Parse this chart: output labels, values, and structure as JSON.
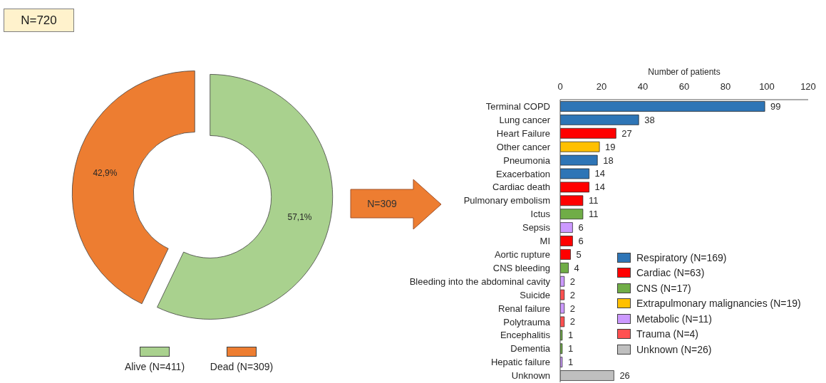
{
  "chart_data": [
    {
      "type": "donut",
      "categories": [
        "Alive (N=411)",
        "Dead (N=309)"
      ],
      "values": [
        57.1,
        42.9
      ],
      "colors": [
        "#a9d18e",
        "#ed7d31"
      ],
      "value_labels": [
        "57,1%",
        "42,9%"
      ],
      "legend": "bottom",
      "annotations": [
        "N=720"
      ]
    },
    {
      "type": "bar",
      "orientation": "horizontal",
      "stacked": true,
      "xlabel": "Number of patients",
      "categories": [
        "Terminal COPD",
        "Lung cancer",
        "Heart Failure",
        "Other cancer",
        "Pneumonia",
        "Exacerbation",
        "Cardiac death",
        "Pulmonary embolism",
        "Ictus",
        "Sepsis",
        "MI",
        "Aortic rupture",
        "CNS bleeding",
        "Bleeding into the abdominal cavity",
        "Suicide",
        "Renal failure",
        "Polytrauma",
        "Encephalitis",
        "Dementia",
        "Hepatic failure",
        "Unknown"
      ],
      "series": [
        {
          "name": "Respiratory (N=169)",
          "color": "#2e75b6",
          "values": [
            99,
            38,
            null,
            null,
            18,
            14,
            null,
            null,
            null,
            null,
            null,
            null,
            null,
            null,
            null,
            null,
            null,
            null,
            null,
            null,
            null
          ]
        },
        {
          "name": "Cardiac (N=63)",
          "color": "#ff0000",
          "values": [
            null,
            null,
            27,
            null,
            null,
            null,
            14,
            11,
            null,
            null,
            6,
            5,
            null,
            null,
            null,
            null,
            null,
            null,
            null,
            null,
            null
          ]
        },
        {
          "name": "CNS (N=17)",
          "color": "#70ad47",
          "values": [
            null,
            null,
            null,
            null,
            null,
            null,
            null,
            null,
            11,
            null,
            null,
            null,
            4,
            null,
            null,
            null,
            null,
            1,
            1,
            null,
            null
          ]
        },
        {
          "name": "Extrapulmonary malignancies (N=19)",
          "color": "#ffc000",
          "values": [
            null,
            null,
            null,
            19,
            null,
            null,
            null,
            null,
            null,
            null,
            null,
            null,
            null,
            null,
            null,
            null,
            null,
            null,
            null,
            null,
            null
          ]
        },
        {
          "name": "Metabolic (N=11)",
          "color": "#cc99ff",
          "values": [
            null,
            null,
            null,
            null,
            null,
            null,
            null,
            null,
            null,
            6,
            null,
            null,
            null,
            2,
            null,
            2,
            null,
            null,
            null,
            1,
            null
          ]
        },
        {
          "name": "Trauma (N=4)",
          "color": "#ff5050",
          "values": [
            null,
            null,
            null,
            null,
            null,
            null,
            null,
            null,
            null,
            null,
            null,
            null,
            null,
            null,
            2,
            null,
            2,
            null,
            null,
            null,
            null
          ]
        },
        {
          "name": "Unknown (N=26)",
          "color": "#bfbfbf",
          "values": [
            null,
            null,
            null,
            null,
            null,
            null,
            null,
            null,
            null,
            null,
            null,
            null,
            null,
            null,
            null,
            null,
            null,
            null,
            null,
            null,
            26
          ]
        }
      ],
      "xlim": [
        0,
        120
      ],
      "xticks": [
        0,
        20,
        40,
        60,
        80,
        100,
        120
      ],
      "data_labels": true,
      "legend": "bottom right",
      "annotations": [
        "N=309"
      ]
    }
  ]
}
